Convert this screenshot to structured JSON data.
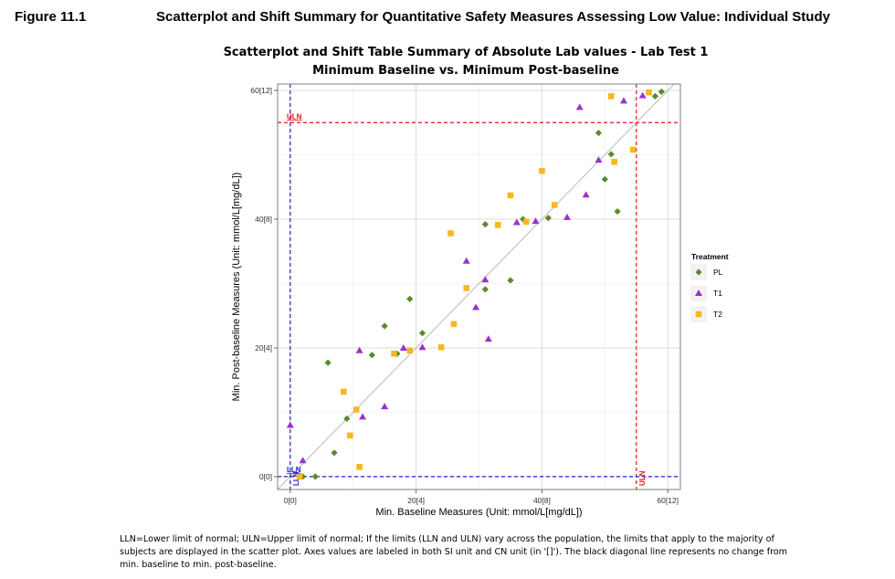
{
  "figure": {
    "number": "Figure 11.1",
    "title": "Scatterplot and Shift Summary for Quantitative Safety Measures Assessing Low Value: Individual Study"
  },
  "chart_data": {
    "type": "scatter",
    "title": "Scatterplot and Shift Table Summary of Absolute Lab values -  Lab Test 1",
    "subtitle": "Minimum Baseline vs. Minimum Post-baseline",
    "xlabel": "Min. Baseline Measures (Unit: mmol/L[mg/dL])",
    "ylabel": "Min. Post-baseline Measures (Unit: mmol/L[mg/dL])",
    "xlim": [
      -2,
      62
    ],
    "ylim": [
      -2,
      61
    ],
    "xticks": [
      0,
      20,
      40,
      60
    ],
    "xtick_labels": [
      "0[0]",
      "20[4]",
      "40[8]",
      "60[12]"
    ],
    "yticks": [
      0,
      20,
      40,
      60
    ],
    "ytick_labels": [
      "0[0]",
      "20[4]",
      "40[8]",
      "60[12]"
    ],
    "grid": true,
    "reference_lines": {
      "lln": {
        "value": 0,
        "label": "LLN",
        "color": "#2222cc"
      },
      "uln": {
        "value": 55,
        "label": "ULN",
        "color": "#ee1111"
      },
      "diagonal": "y = x (no change)"
    },
    "legend": {
      "title": "Treatment",
      "position": "right"
    },
    "series": [
      {
        "name": "PL",
        "marker": "diamond",
        "color": "#5a8a2a",
        "points": [
          [
            2,
            0
          ],
          [
            4,
            0
          ],
          [
            6,
            17.7
          ],
          [
            7,
            3.7
          ],
          [
            9,
            9
          ],
          [
            13,
            18.9
          ],
          [
            15,
            23.4
          ],
          [
            17,
            19.1
          ],
          [
            19,
            27.6
          ],
          [
            21,
            22.3
          ],
          [
            31,
            39.2
          ],
          [
            31,
            29.1
          ],
          [
            35,
            30.5
          ],
          [
            37,
            40
          ],
          [
            41,
            40.2
          ],
          [
            49,
            53.4
          ],
          [
            50,
            46.2
          ],
          [
            51,
            50.1
          ],
          [
            52,
            41.2
          ],
          [
            58,
            59.1
          ],
          [
            59,
            59.8
          ]
        ]
      },
      {
        "name": "T1",
        "marker": "triangle",
        "color": "#9933cc",
        "points": [
          [
            0,
            8
          ],
          [
            2,
            2.5
          ],
          [
            11,
            19.6
          ],
          [
            11.5,
            9.3
          ],
          [
            15,
            10.9
          ],
          [
            18,
            20
          ],
          [
            21,
            20.1
          ],
          [
            28,
            33.5
          ],
          [
            29.5,
            26.3
          ],
          [
            31,
            30.6
          ],
          [
            31.5,
            21.4
          ],
          [
            36,
            39.5
          ],
          [
            39,
            39.7
          ],
          [
            44,
            40.3
          ],
          [
            46,
            57.4
          ],
          [
            47,
            43.8
          ],
          [
            49,
            49.2
          ],
          [
            53,
            58.4
          ],
          [
            56,
            59.2
          ]
        ]
      },
      {
        "name": "T2",
        "marker": "square",
        "color": "#f5b820",
        "points": [
          [
            1.5,
            0
          ],
          [
            8.5,
            13.2
          ],
          [
            9.5,
            6.4
          ],
          [
            10.5,
            10.4
          ],
          [
            11,
            1.5
          ],
          [
            16.5,
            19.1
          ],
          [
            19,
            19.6
          ],
          [
            24,
            20.1
          ],
          [
            25.5,
            37.8
          ],
          [
            26,
            23.7
          ],
          [
            28,
            29.3
          ],
          [
            33,
            39.1
          ],
          [
            35,
            43.7
          ],
          [
            37.5,
            39.6
          ],
          [
            40,
            47.5
          ],
          [
            42,
            42.2
          ],
          [
            51,
            59.1
          ],
          [
            51.5,
            48.9
          ],
          [
            54.5,
            50.8
          ],
          [
            57,
            59.7
          ]
        ]
      }
    ]
  },
  "footnote": {
    "line1": "LLN=Lower limit of normal; ULN=Upper limit of normal; If the limits (LLN and ULN) vary across the population, the limits that apply to the majority of",
    "line2": "subjects are displayed in the scatter plot.  Axes values are labeled in both SI unit and CN unit (in '[]'). The black diagonal line represents no change from",
    "line3": "min. baseline to min. post-baseline."
  }
}
